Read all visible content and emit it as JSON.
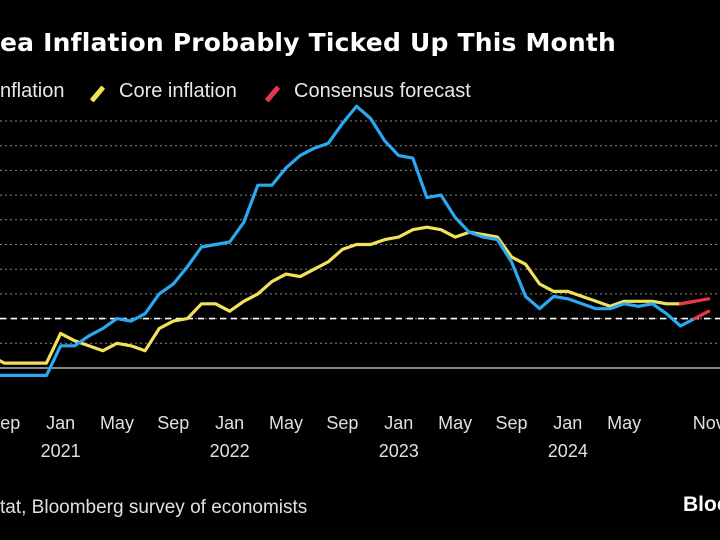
{
  "header": {
    "title": "ea Inflation Probably Ticked Up This Month"
  },
  "legend": [
    {
      "label": "nflation",
      "color": "#2aa8f0"
    },
    {
      "label": "Core inflation",
      "color": "#f2e15a"
    },
    {
      "label": "Consensus forecast",
      "color": "#e8374a"
    }
  ],
  "footer": {
    "source": "tat, Bloomberg survey of economists",
    "brand": "Bloo"
  },
  "colors": {
    "headline": "#2aa8f0",
    "core": "#f2e15a",
    "forecast": "#e8374a",
    "target_line": "#ffffff",
    "grid": "#888888"
  },
  "chart_data": {
    "type": "line",
    "title": "ea Inflation Probably Ticked Up This Month",
    "xlabel": "",
    "ylabel": "",
    "x_units": "months since Jan 2021 (0 = Jan 2021)",
    "xlim": [
      -4.3,
      46.8
    ],
    "ylim": [
      -0.6,
      11.0
    ],
    "y_gridlines": [
      0,
      1,
      2,
      3,
      4,
      5,
      6,
      7,
      8,
      9,
      10
    ],
    "reference_line": {
      "y": 2,
      "style": "dashed"
    },
    "x_ticks": [
      {
        "x": -4,
        "label": "Sep"
      },
      {
        "x": 0,
        "label": "Jan"
      },
      {
        "x": 4,
        "label": "May"
      },
      {
        "x": 8,
        "label": "Sep"
      },
      {
        "x": 12,
        "label": "Jan"
      },
      {
        "x": 16,
        "label": "May"
      },
      {
        "x": 20,
        "label": "Sep"
      },
      {
        "x": 24,
        "label": "Jan"
      },
      {
        "x": 28,
        "label": "May"
      },
      {
        "x": 32,
        "label": "Sep"
      },
      {
        "x": 36,
        "label": "Jan"
      },
      {
        "x": 40,
        "label": "May"
      },
      {
        "x": 46,
        "label": "Nov"
      }
    ],
    "year_labels": [
      {
        "x": 0,
        "label": "2021"
      },
      {
        "x": 12,
        "label": "2022"
      },
      {
        "x": 24,
        "label": "2023"
      },
      {
        "x": 36,
        "label": "2024"
      }
    ],
    "series": [
      {
        "name": "Headline inflation",
        "x": [
          -5,
          -4,
          -3,
          -2,
          -1,
          0,
          1,
          2,
          3,
          4,
          5,
          6,
          7,
          8,
          9,
          10,
          11,
          12,
          13,
          14,
          15,
          16,
          17,
          18,
          19,
          20,
          21,
          22,
          23,
          24,
          25,
          26,
          27,
          28,
          29,
          30,
          31,
          32,
          33,
          34,
          35,
          36,
          37,
          38,
          39,
          40,
          41,
          42,
          43,
          44,
          45
        ],
        "values": [
          -0.3,
          -0.3,
          -0.3,
          -0.3,
          -0.3,
          0.9,
          0.9,
          1.3,
          1.6,
          2.0,
          1.9,
          2.2,
          3.0,
          3.4,
          4.1,
          4.9,
          5.0,
          5.1,
          5.9,
          7.4,
          7.4,
          8.1,
          8.6,
          8.9,
          9.1,
          9.9,
          10.6,
          10.1,
          9.2,
          8.6,
          8.5,
          6.9,
          7.0,
          6.1,
          5.5,
          5.3,
          5.2,
          4.3,
          2.9,
          2.4,
          2.9,
          2.8,
          2.6,
          2.4,
          2.4,
          2.6,
          2.5,
          2.6,
          2.2,
          1.7,
          2.0
        ]
      },
      {
        "name": "Core inflation",
        "x": [
          -5,
          -4,
          -3,
          -2,
          -1,
          0,
          1,
          2,
          3,
          4,
          5,
          6,
          7,
          8,
          9,
          10,
          11,
          12,
          13,
          14,
          15,
          16,
          17,
          18,
          19,
          20,
          21,
          22,
          23,
          24,
          25,
          26,
          27,
          28,
          29,
          30,
          31,
          32,
          33,
          34,
          35,
          36,
          37,
          38,
          39,
          40,
          41,
          42,
          43,
          44,
          45
        ],
        "values": [
          0.5,
          0.2,
          0.2,
          0.2,
          0.2,
          1.4,
          1.1,
          0.9,
          0.7,
          1.0,
          0.9,
          0.7,
          1.6,
          1.9,
          2.0,
          2.6,
          2.6,
          2.3,
          2.7,
          3.0,
          3.5,
          3.8,
          3.7,
          4.0,
          4.3,
          4.8,
          5.0,
          5.0,
          5.2,
          5.3,
          5.6,
          5.7,
          5.6,
          5.3,
          5.5,
          5.4,
          5.3,
          4.5,
          4.2,
          3.4,
          3.1,
          3.1,
          2.9,
          2.7,
          2.5,
          2.7,
          2.7,
          2.7,
          2.6,
          2.6,
          2.7
        ]
      },
      {
        "name": "Consensus forecast",
        "segments": [
          {
            "x": [
              44,
              45,
              46
            ],
            "values": [
              2.6,
              2.7,
              2.8
            ]
          },
          {
            "x": [
              45,
              46
            ],
            "values": [
              2.0,
              2.3
            ]
          }
        ]
      }
    ]
  }
}
